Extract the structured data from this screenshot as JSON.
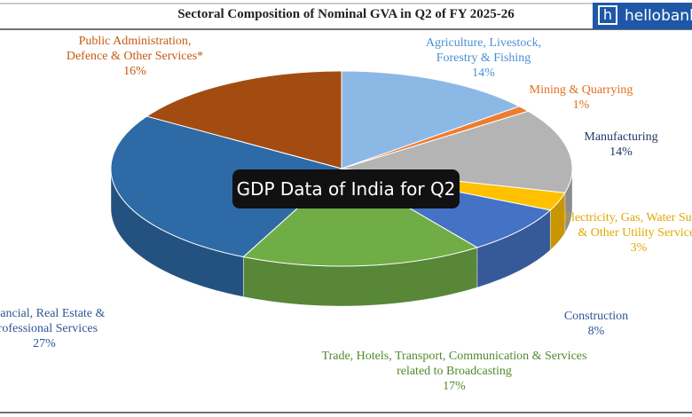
{
  "brand_icon": "h",
  "brand": "hellobank",
  "overlay_text": "GDP Data of India for Q2",
  "chart_data": {
    "type": "pie",
    "title": "Sectoral Composition of Nominal GVA in Q2 of FY 2025-26",
    "categories": [
      "Agriculture, Livestock, Forestry & Fishing",
      "Mining & Quarrying",
      "Manufacturing",
      "Electricity, Gas, Water Supply & Other Utility Services",
      "Construction",
      "Trade, Hotels, Transport, Communication & Services related to Broadcasting",
      "Financial, Real Estate & Professional Services",
      "Public Administration, Defence & Other Services*"
    ],
    "values": [
      14,
      1,
      14,
      3,
      8,
      17,
      27,
      16
    ],
    "value_labels": [
      "14%",
      "1%",
      "14%",
      "3%",
      "8%",
      "17%",
      "27%",
      "16%"
    ],
    "colors": [
      "#8cb8e6",
      "#ed7d31",
      "#b4b4b4",
      "#ffc000",
      "#4472c4",
      "#70ad47",
      "#2e6aa6",
      "#a34c12"
    ]
  }
}
